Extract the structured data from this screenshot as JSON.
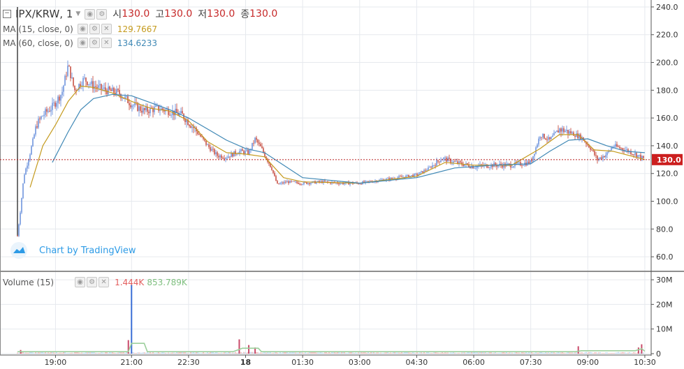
{
  "header": {
    "symbol": "IPX/KRW, 1",
    "ohlc": [
      {
        "key": "시",
        "value": "130.0"
      },
      {
        "key": "고",
        "value": "130.0"
      },
      {
        "key": "저",
        "value": "130.0"
      },
      {
        "key": "종",
        "value": "130.0"
      }
    ]
  },
  "indicators": {
    "ma15": {
      "label": "MA (15, close, 0)",
      "value": "129.7667",
      "color": "#c49a1d"
    },
    "ma60": {
      "label": "MA (60, close, 0)",
      "value": "134.6233",
      "color": "#3f88b5"
    }
  },
  "volume_legend": {
    "label": "Volume (15)",
    "value_1": "1.444K",
    "value_2": "853.789K",
    "color_1": "#e35d5d",
    "color_2": "#7fbf7f"
  },
  "watermark": "Chart by TradingView",
  "colors": {
    "up": "#5a86d9",
    "down": "#c0392b",
    "last_price_bg": "#cc1f1f"
  },
  "chart_data": {
    "type": "candlestick",
    "title": "IPX/KRW, 1",
    "y_range": [
      50,
      245
    ],
    "y_ticks": [
      60,
      80,
      100,
      120,
      140,
      160,
      180,
      200,
      220,
      240
    ],
    "y_tick_labels": [
      "60.0",
      "80.0",
      "100.0",
      "120.0",
      "140.0",
      "160.0",
      "180.0",
      "200.0",
      "220.0",
      "240.0"
    ],
    "last_price": 130.0,
    "last_price_label": "130.0",
    "x_labels": [
      "19:00",
      "21:00",
      "22:30",
      "18",
      "01:30",
      "03:00",
      "04:30",
      "06:00",
      "07:30",
      "09:00",
      "10:30"
    ],
    "price_series": [
      {
        "t": "18:00",
        "v": 75
      },
      {
        "t": "18:05",
        "v": 95
      },
      {
        "t": "18:10",
        "v": 118
      },
      {
        "t": "18:20",
        "v": 135
      },
      {
        "t": "18:30",
        "v": 155
      },
      {
        "t": "18:40",
        "v": 162
      },
      {
        "t": "18:55",
        "v": 168
      },
      {
        "t": "19:10",
        "v": 178
      },
      {
        "t": "19:20",
        "v": 198
      },
      {
        "t": "19:30",
        "v": 180
      },
      {
        "t": "19:45",
        "v": 188
      },
      {
        "t": "20:00",
        "v": 183
      },
      {
        "t": "20:20",
        "v": 180
      },
      {
        "t": "20:40",
        "v": 178
      },
      {
        "t": "21:00",
        "v": 170
      },
      {
        "t": "21:20",
        "v": 165
      },
      {
        "t": "21:40",
        "v": 167
      },
      {
        "t": "22:00",
        "v": 165
      },
      {
        "t": "22:20",
        "v": 162
      },
      {
        "t": "22:40",
        "v": 152
      },
      {
        "t": "23:00",
        "v": 140
      },
      {
        "t": "23:15",
        "v": 133
      },
      {
        "t": "23:30",
        "v": 132
      },
      {
        "t": "23:50",
        "v": 136
      },
      {
        "t": "00:05",
        "v": 135
      },
      {
        "t": "00:15",
        "v": 145
      },
      {
        "t": "00:25",
        "v": 138
      },
      {
        "t": "00:40",
        "v": 125
      },
      {
        "t": "00:50",
        "v": 112
      },
      {
        "t": "01:05",
        "v": 114
      },
      {
        "t": "01:30",
        "v": 113
      },
      {
        "t": "02:00",
        "v": 114
      },
      {
        "t": "02:30",
        "v": 113
      },
      {
        "t": "03:00",
        "v": 113
      },
      {
        "t": "03:30",
        "v": 115
      },
      {
        "t": "04:00",
        "v": 117
      },
      {
        "t": "04:30",
        "v": 119
      },
      {
        "t": "04:50",
        "v": 124
      },
      {
        "t": "05:10",
        "v": 131
      },
      {
        "t": "05:30",
        "v": 128
      },
      {
        "t": "06:00",
        "v": 125
      },
      {
        "t": "06:30",
        "v": 126
      },
      {
        "t": "07:00",
        "v": 126
      },
      {
        "t": "07:30",
        "v": 128
      },
      {
        "t": "07:45",
        "v": 148
      },
      {
        "t": "08:00",
        "v": 144
      },
      {
        "t": "08:15",
        "v": 152
      },
      {
        "t": "08:30",
        "v": 150
      },
      {
        "t": "08:50",
        "v": 146
      },
      {
        "t": "09:05",
        "v": 138
      },
      {
        "t": "09:15",
        "v": 130
      },
      {
        "t": "09:30",
        "v": 134
      },
      {
        "t": "09:40",
        "v": 140
      },
      {
        "t": "10:00",
        "v": 137
      },
      {
        "t": "10:15",
        "v": 134
      },
      {
        "t": "10:30",
        "v": 130
      }
    ],
    "ma15_series": [
      {
        "t": "18:20",
        "v": 110
      },
      {
        "t": "18:40",
        "v": 140
      },
      {
        "t": "19:00",
        "v": 155
      },
      {
        "t": "19:20",
        "v": 172
      },
      {
        "t": "19:40",
        "v": 183
      },
      {
        "t": "20:00",
        "v": 182
      },
      {
        "t": "20:30",
        "v": 178
      },
      {
        "t": "21:00",
        "v": 172
      },
      {
        "t": "21:30",
        "v": 167
      },
      {
        "t": "22:00",
        "v": 165
      },
      {
        "t": "22:30",
        "v": 158
      },
      {
        "t": "23:00",
        "v": 143
      },
      {
        "t": "23:30",
        "v": 135
      },
      {
        "t": "00:00",
        "v": 134
      },
      {
        "t": "00:30",
        "v": 132
      },
      {
        "t": "01:00",
        "v": 117
      },
      {
        "t": "01:30",
        "v": 114
      },
      {
        "t": "03:00",
        "v": 113
      },
      {
        "t": "04:30",
        "v": 118
      },
      {
        "t": "05:15",
        "v": 128
      },
      {
        "t": "06:00",
        "v": 126
      },
      {
        "t": "07:00",
        "v": 126
      },
      {
        "t": "07:45",
        "v": 138
      },
      {
        "t": "08:15",
        "v": 148
      },
      {
        "t": "08:45",
        "v": 148
      },
      {
        "t": "09:10",
        "v": 137
      },
      {
        "t": "09:40",
        "v": 136
      },
      {
        "t": "10:30",
        "v": 130
      }
    ],
    "ma60_series": [
      {
        "t": "18:55",
        "v": 128
      },
      {
        "t": "19:20",
        "v": 150
      },
      {
        "t": "19:40",
        "v": 166
      },
      {
        "t": "20:00",
        "v": 174
      },
      {
        "t": "20:30",
        "v": 177
      },
      {
        "t": "21:00",
        "v": 176
      },
      {
        "t": "21:30",
        "v": 171
      },
      {
        "t": "22:00",
        "v": 166
      },
      {
        "t": "22:30",
        "v": 160
      },
      {
        "t": "23:00",
        "v": 152
      },
      {
        "t": "23:30",
        "v": 144
      },
      {
        "t": "00:00",
        "v": 138
      },
      {
        "t": "00:30",
        "v": 135
      },
      {
        "t": "01:00",
        "v": 126
      },
      {
        "t": "01:30",
        "v": 117
      },
      {
        "t": "03:00",
        "v": 113
      },
      {
        "t": "04:30",
        "v": 117
      },
      {
        "t": "05:30",
        "v": 124
      },
      {
        "t": "06:30",
        "v": 126
      },
      {
        "t": "07:30",
        "v": 127
      },
      {
        "t": "08:00",
        "v": 136
      },
      {
        "t": "08:30",
        "v": 144
      },
      {
        "t": "09:00",
        "v": 145
      },
      {
        "t": "09:30",
        "v": 140
      },
      {
        "t": "10:00",
        "v": 136
      },
      {
        "t": "10:30",
        "v": 135
      }
    ],
    "volume": {
      "y_range": [
        0,
        32
      ],
      "y_ticks": [
        0,
        10,
        20,
        30
      ],
      "y_tick_labels": [
        "0",
        "10M",
        "20M",
        "30M"
      ],
      "bars": [
        {
          "t": "18:05",
          "v": 1.5
        },
        {
          "t": "20:55",
          "v": 5.5
        },
        {
          "t": "21:00",
          "v": 28
        },
        {
          "t": "23:50",
          "v": 5.8
        },
        {
          "t": "00:05",
          "v": 3.5
        },
        {
          "t": "00:15",
          "v": 2.5
        },
        {
          "t": "08:45",
          "v": 3
        },
        {
          "t": "10:20",
          "v": 2.5
        },
        {
          "t": "10:25",
          "v": 3.8
        }
      ],
      "avg_series": [
        {
          "t": "18:00",
          "v": 0.8
        },
        {
          "t": "20:55",
          "v": 0.8
        },
        {
          "t": "21:00",
          "v": 4.2
        },
        {
          "t": "21:20",
          "v": 4.2
        },
        {
          "t": "21:25",
          "v": 0.8
        },
        {
          "t": "23:40",
          "v": 0.8
        },
        {
          "t": "23:55",
          "v": 2.2
        },
        {
          "t": "00:20",
          "v": 2.2
        },
        {
          "t": "00:25",
          "v": 0.8
        },
        {
          "t": "08:40",
          "v": 0.8
        },
        {
          "t": "08:50",
          "v": 1.2
        },
        {
          "t": "10:15",
          "v": 1.2
        },
        {
          "t": "10:25",
          "v": 2.0
        },
        {
          "t": "10:30",
          "v": 1.0
        }
      ]
    }
  }
}
